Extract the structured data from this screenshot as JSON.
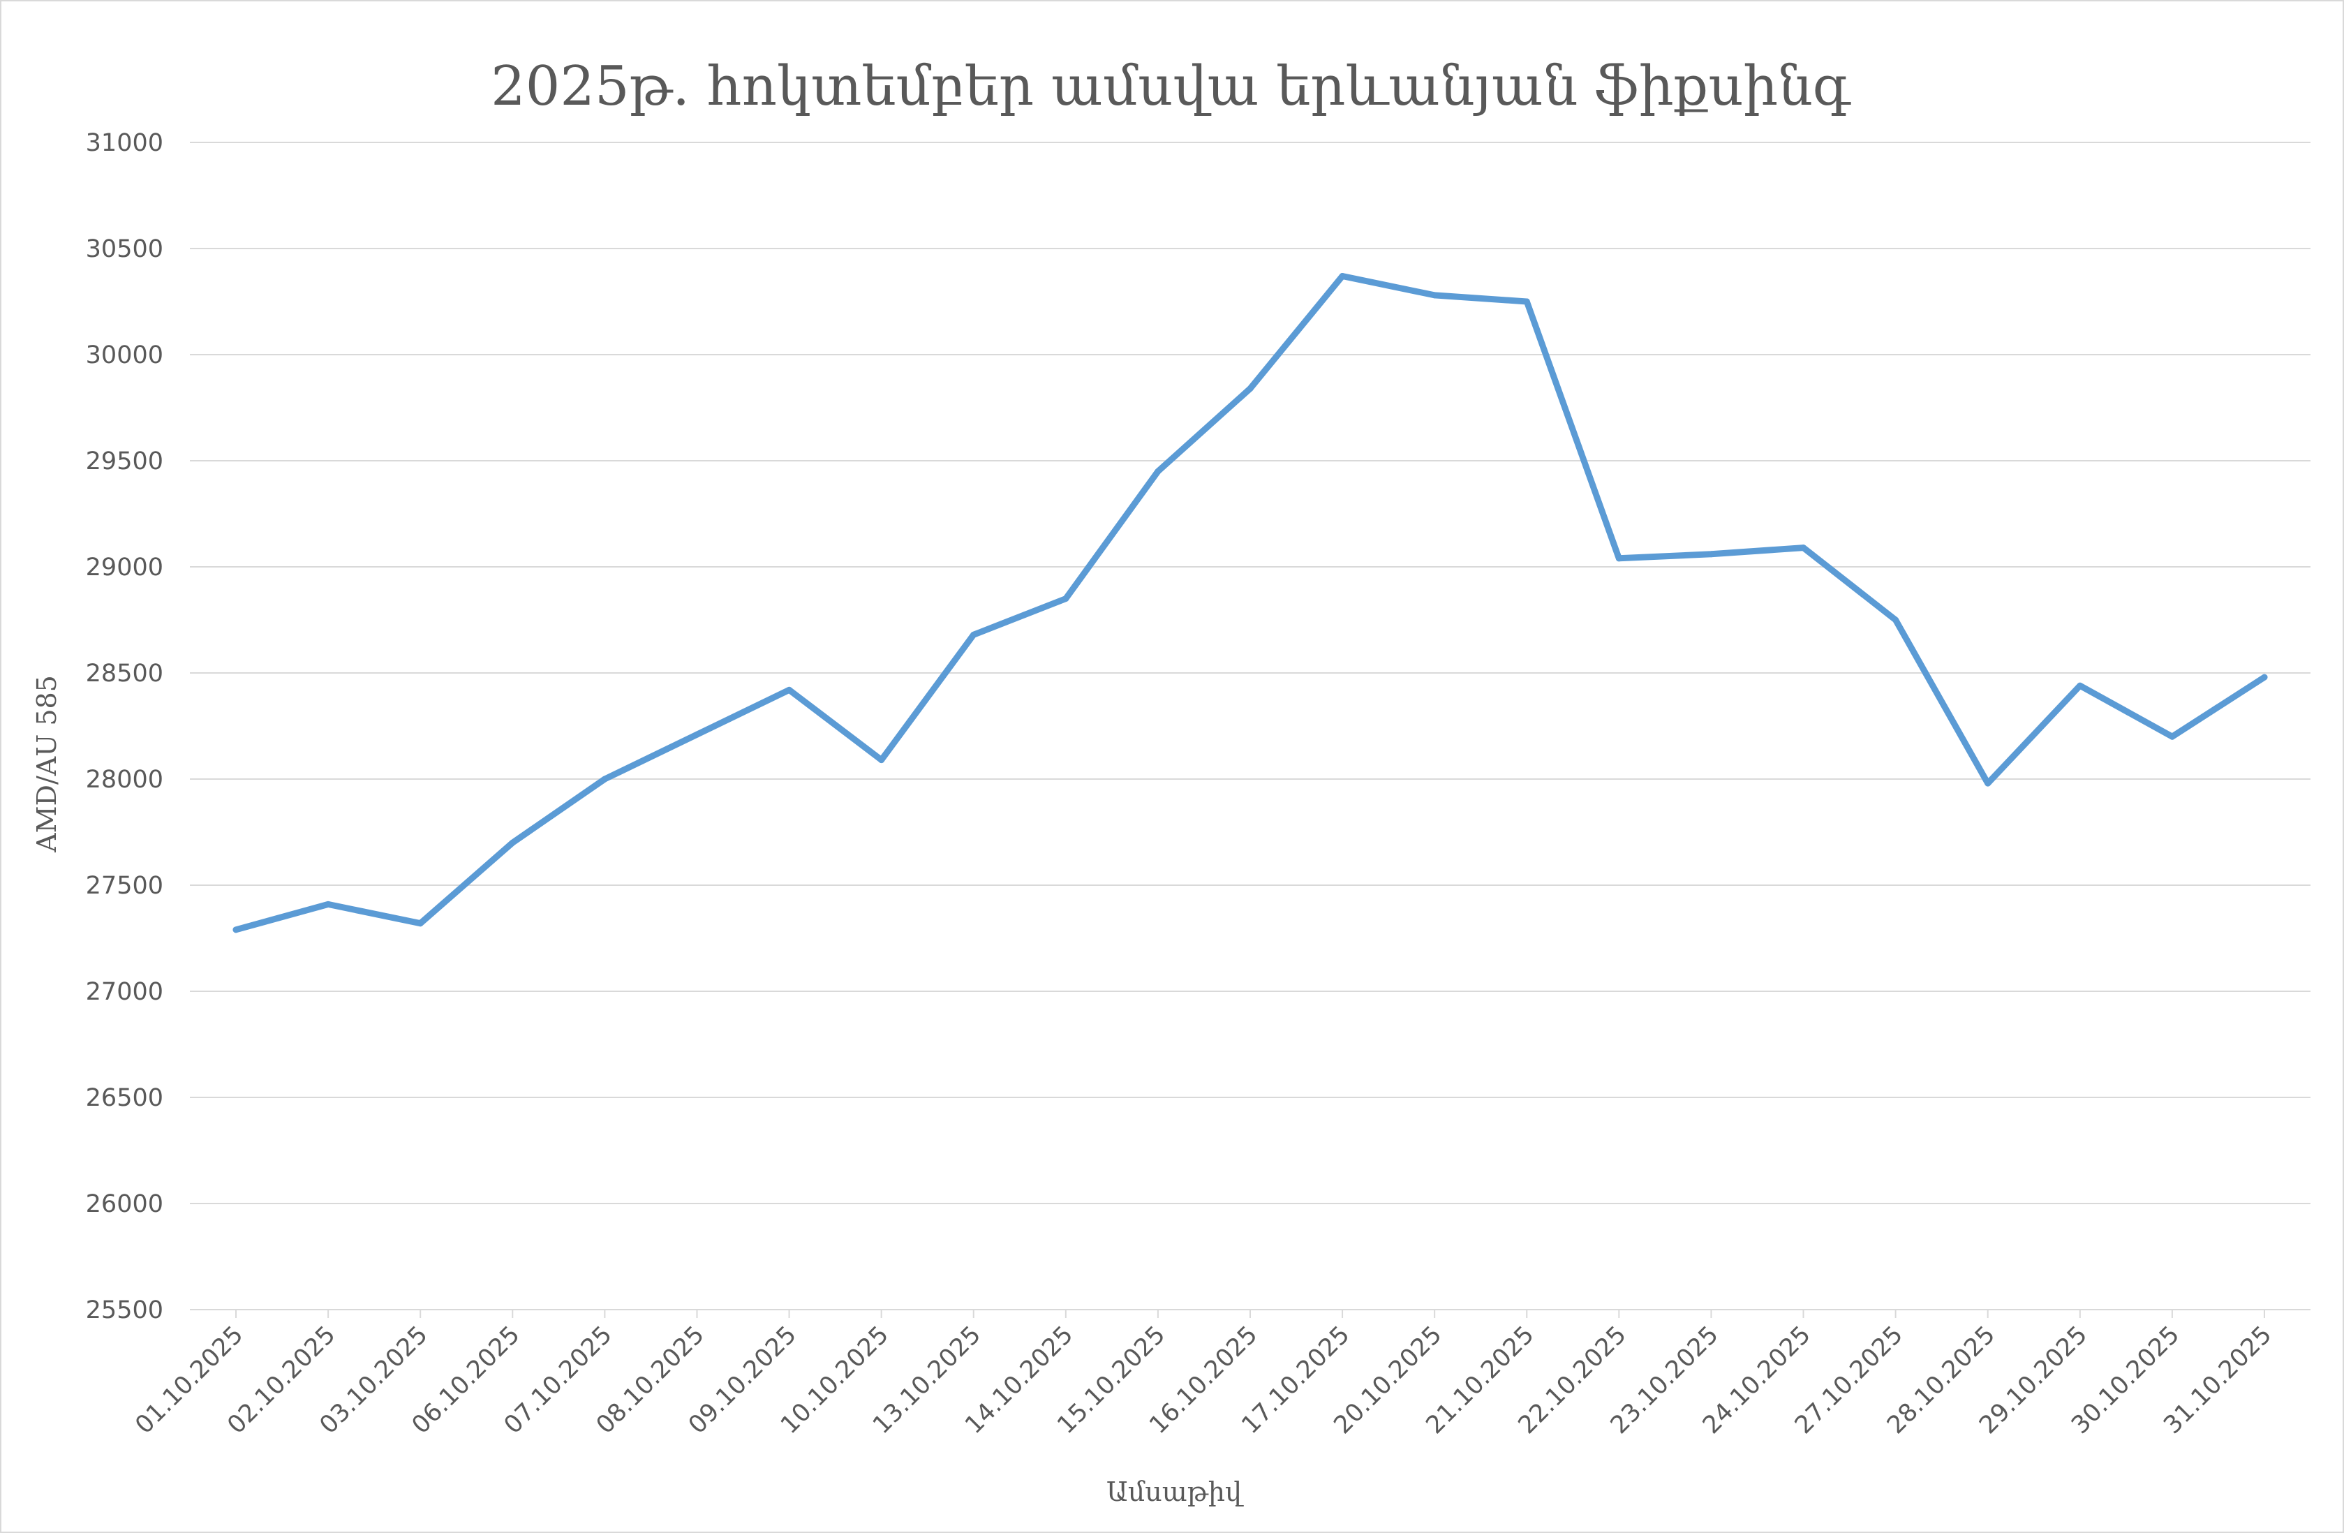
{
  "chart_data": {
    "type": "line",
    "title": "2025թ. հոկտեմբեր ամսվա երևանյան ֆիքսինգ",
    "xlabel": "Ամսաթիվ",
    "ylabel": "AMD/AU 585",
    "ylim": [
      25500,
      31000
    ],
    "yticks": [
      25500,
      26000,
      26500,
      27000,
      27500,
      28000,
      28500,
      29000,
      29500,
      30000,
      30500,
      31000
    ],
    "grid": true,
    "legend": "none",
    "colors": {
      "series": "#5b9bd5",
      "grid": "#d9d9d9",
      "text": "#595959"
    },
    "categories": [
      "01.10.2025",
      "02.10.2025",
      "03.10.2025",
      "06.10.2025",
      "07.10.2025",
      "08.10.2025",
      "09.10.2025",
      "10.10.2025",
      "13.10.2025",
      "14.10.2025",
      "15.10.2025",
      "16.10.2025",
      "17.10.2025",
      "20.10.2025",
      "21.10.2025",
      "22.10.2025",
      "23.10.2025",
      "24.10.2025",
      "27.10.2025",
      "28.10.2025",
      "29.10.2025",
      "30.10.2025",
      "31.10.2025"
    ],
    "series": [
      {
        "values": [
          27290,
          27410,
          27320,
          27700,
          28000,
          28210,
          28420,
          28090,
          28680,
          28850,
          29450,
          29840,
          30370,
          30280,
          30250,
          29040,
          29060,
          29090,
          28750,
          27980,
          28440,
          28200,
          28480
        ]
      }
    ]
  }
}
